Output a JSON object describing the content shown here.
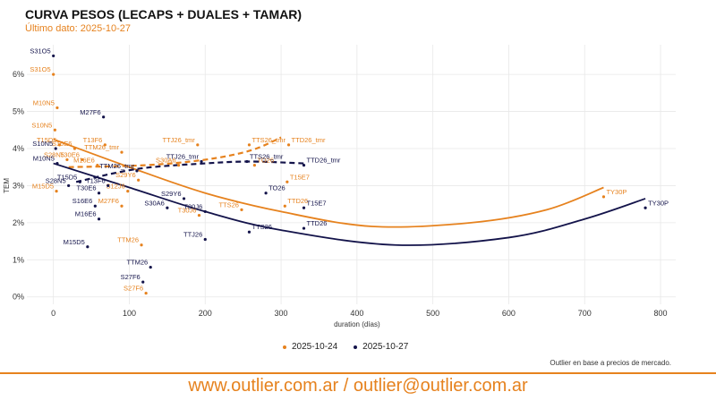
{
  "header": {
    "title": "CURVA PESOS (LECAPS + DUALES + TAMAR)",
    "subtitle": "Último dato: 2025-10-27"
  },
  "colors": {
    "series_oct24": "#e6821e",
    "series_oct27": "#13134a",
    "grid": "#e6e6e6",
    "accent": "#e6821e"
  },
  "chart_data": {
    "type": "scatter",
    "title": "CURVA PESOS (LECAPS + DUALES + TAMAR)",
    "xlabel": "duration (días)",
    "ylabel": "TEM",
    "xlim": [
      -35,
      820
    ],
    "ylim": [
      -0.2,
      6.8
    ],
    "xticks": [
      0,
      100,
      200,
      300,
      400,
      500,
      600,
      700,
      800
    ],
    "yticks": [
      0,
      1,
      2,
      3,
      4,
      5,
      6
    ],
    "ytick_labels": [
      "0%",
      "1%",
      "2%",
      "3%",
      "4%",
      "5%",
      "6%"
    ],
    "legend": [
      "2025-10-24",
      "2025-10-27"
    ],
    "series": [
      {
        "name": "2025-10-24",
        "color": "#e6821e",
        "points": [
          {
            "label": "S31O5",
            "x": 0,
            "y": 6.0
          },
          {
            "label": "M10N5",
            "x": 5,
            "y": 5.1
          },
          {
            "label": "S10N5",
            "x": 2,
            "y": 4.5
          },
          {
            "label": "T15D5",
            "x": 8,
            "y": 4.1
          },
          {
            "label": "S16E6",
            "x": 28,
            "y": 4.0
          },
          {
            "label": "T13F6",
            "x": 68,
            "y": 4.1
          },
          {
            "label": "S28N5",
            "x": 18,
            "y": 3.7
          },
          {
            "label": "T30E6",
            "x": 38,
            "y": 3.7
          },
          {
            "label": "M16E6",
            "x": 58,
            "y": 3.55
          },
          {
            "label": "TTM26_tmr",
            "x": 90,
            "y": 3.9
          },
          {
            "label": "TTJ26_tmr",
            "x": 190,
            "y": 4.1
          },
          {
            "label": "S30A6",
            "x": 165,
            "y": 3.55
          },
          {
            "label": "S29Y6",
            "x": 112,
            "y": 3.15
          },
          {
            "label": "S12J6",
            "x": 98,
            "y": 2.85
          },
          {
            "label": "M15D5",
            "x": 4,
            "y": 2.85
          },
          {
            "label": "M27F6",
            "x": 90,
            "y": 2.45
          },
          {
            "label": "T30J6",
            "x": 192,
            "y": 2.2
          },
          {
            "label": "TTS26_tmr",
            "x": 258,
            "y": 4.1
          },
          {
            "label": "TTD26_tmr",
            "x": 310,
            "y": 4.1
          },
          {
            "label": "TO26",
            "x": 265,
            "y": 3.55
          },
          {
            "label": "T15E7",
            "x": 308,
            "y": 3.1
          },
          {
            "label": "TTS26",
            "x": 248,
            "y": 2.35
          },
          {
            "label": "TTD26",
            "x": 305,
            "y": 2.45
          },
          {
            "label": "TTM26",
            "x": 116,
            "y": 1.4
          },
          {
            "label": "S27F6",
            "x": 122,
            "y": 0.1
          },
          {
            "label": "TY30P",
            "x": 725,
            "y": 2.7
          }
        ]
      },
      {
        "name": "2025-10-27",
        "color": "#13134a",
        "points": [
          {
            "label": "S31O5",
            "x": 0,
            "y": 6.5
          },
          {
            "label": "M27F6",
            "x": 66,
            "y": 4.85
          },
          {
            "label": "S10N5",
            "x": 3,
            "y": 4.0
          },
          {
            "label": "M10N5",
            "x": 5,
            "y": 3.6
          },
          {
            "label": "S28N5",
            "x": 20,
            "y": 3.0
          },
          {
            "label": "T15D5",
            "x": 35,
            "y": 3.1
          },
          {
            "label": "T13F6",
            "x": 72,
            "y": 3.0
          },
          {
            "label": "T30E6",
            "x": 60,
            "y": 2.8
          },
          {
            "label": "S16E6",
            "x": 55,
            "y": 2.45
          },
          {
            "label": "M16E6",
            "x": 60,
            "y": 2.1
          },
          {
            "label": "TTM26_tmr",
            "x": 110,
            "y": 3.4
          },
          {
            "label": "TTJ26_tmr",
            "x": 195,
            "y": 3.65
          },
          {
            "label": "TTS26_tmr",
            "x": 255,
            "y": 3.65
          },
          {
            "label": "TTD26_tmr",
            "x": 330,
            "y": 3.55
          },
          {
            "label": "S29Y6",
            "x": 172,
            "y": 2.65
          },
          {
            "label": "S30A6",
            "x": 150,
            "y": 2.4
          },
          {
            "label": "T30J6",
            "x": 200,
            "y": 2.3
          },
          {
            "label": "TO26",
            "x": 280,
            "y": 2.8
          },
          {
            "label": "T15E7",
            "x": 330,
            "y": 2.4
          },
          {
            "label": "TTD26",
            "x": 330,
            "y": 1.85
          },
          {
            "label": "TTS26",
            "x": 258,
            "y": 1.75
          },
          {
            "label": "TTJ26",
            "x": 200,
            "y": 1.55
          },
          {
            "label": "M15D5",
            "x": 45,
            "y": 1.35
          },
          {
            "label": "TTM26",
            "x": 128,
            "y": 0.8
          },
          {
            "label": "S27F6",
            "x": 118,
            "y": 0.4
          },
          {
            "label": "TY30P",
            "x": 780,
            "y": 2.4
          }
        ]
      }
    ],
    "fits": [
      {
        "series": "2025-10-24",
        "kind": "curve",
        "points": [
          [
            0,
            4.25
          ],
          [
            100,
            3.5
          ],
          [
            200,
            2.8
          ],
          [
            300,
            2.3
          ],
          [
            420,
            1.9
          ],
          [
            550,
            2.0
          ],
          [
            650,
            2.35
          ],
          [
            725,
            2.95
          ]
        ]
      },
      {
        "series": "2025-10-24",
        "kind": "dashed",
        "points": [
          [
            20,
            3.5
          ],
          [
            120,
            3.55
          ],
          [
            200,
            3.7
          ],
          [
            260,
            3.95
          ],
          [
            300,
            4.3
          ]
        ]
      },
      {
        "series": "2025-10-27",
        "kind": "curve",
        "points": [
          [
            0,
            3.6
          ],
          [
            100,
            2.95
          ],
          [
            200,
            2.3
          ],
          [
            300,
            1.8
          ],
          [
            450,
            1.4
          ],
          [
            600,
            1.6
          ],
          [
            700,
            2.1
          ],
          [
            780,
            2.65
          ]
        ]
      },
      {
        "series": "2025-10-27",
        "kind": "dashed",
        "points": [
          [
            30,
            3.1
          ],
          [
            110,
            3.45
          ],
          [
            200,
            3.6
          ],
          [
            260,
            3.65
          ],
          [
            330,
            3.6
          ]
        ]
      }
    ]
  },
  "note": "Outlier en base a precios de mercado.",
  "footer": "www.outlier.com.ar  /  outlier@outlier.com.ar"
}
